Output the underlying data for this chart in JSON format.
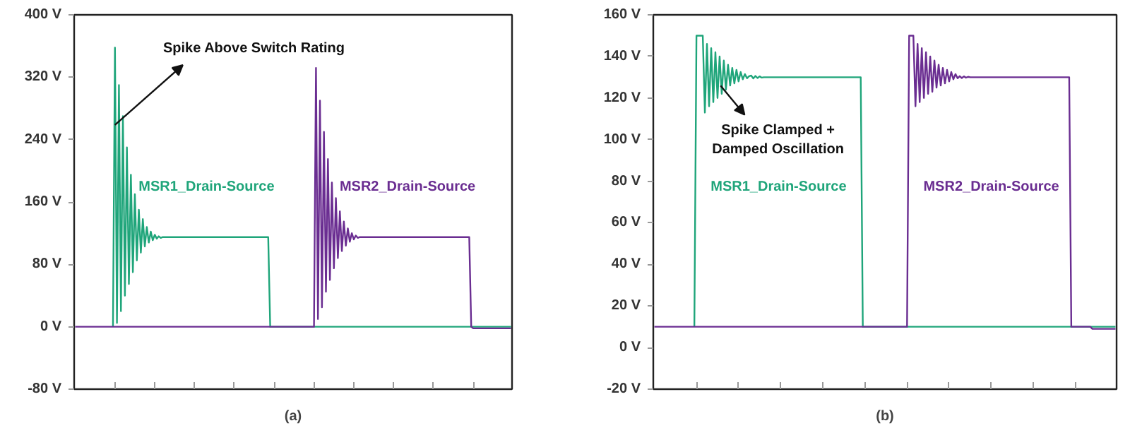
{
  "chart_data": [
    {
      "type": "line",
      "xlabel": "(a)",
      "categories": [
        null,
        null,
        null,
        null,
        null,
        null,
        null,
        null,
        null,
        null,
        null,
        null,
        null,
        null,
        null,
        null,
        null,
        null,
        null,
        null,
        null,
        null,
        null,
        null,
        null,
        null,
        null,
        null,
        null,
        null,
        null,
        null,
        null,
        null,
        null,
        null,
        null,
        null,
        null,
        null,
        null,
        null,
        null,
        null,
        null,
        null,
        null,
        null,
        null,
        null,
        null,
        null,
        null,
        null,
        null,
        null,
        null,
        null,
        null,
        null,
        null,
        null,
        null,
        null,
        null,
        null,
        null,
        null,
        null,
        null,
        null,
        null,
        null,
        null,
        null,
        null,
        null,
        null,
        null,
        null,
        null,
        null,
        null,
        null,
        null,
        null,
        null,
        null,
        null,
        null,
        null,
        null,
        null,
        null,
        null,
        null,
        null,
        null,
        null,
        null,
        null,
        null,
        null,
        null,
        null,
        null,
        null,
        null,
        null,
        null,
        null,
        null,
        null,
        null,
        null,
        null,
        null,
        null,
        null,
        null,
        null,
        null,
        null,
        null,
        null,
        null,
        null,
        null,
        null,
        null,
        null,
        null,
        null,
        null,
        null,
        null,
        null,
        null,
        null,
        null,
        null,
        null,
        null,
        null,
        null,
        null,
        null,
        null,
        null,
        null,
        null,
        null,
        null,
        null,
        null,
        null,
        null,
        null,
        null,
        null,
        null,
        null,
        null,
        null,
        null,
        null,
        null,
        null,
        null,
        null,
        null,
        null,
        null,
        null,
        null,
        null,
        null,
        null,
        null,
        null,
        null,
        null,
        null,
        null,
        null,
        null,
        null,
        null,
        null,
        null,
        null,
        null,
        null,
        null,
        null,
        null,
        null,
        null,
        null,
        null,
        null,
        null,
        null,
        null,
        null,
        null,
        null,
        null,
        null,
        null,
        null,
        null,
        null,
        null,
        null,
        null,
        null,
        null,
        null,
        null
      ],
      "ylim": [
        -80,
        400
      ],
      "yticks": [
        {
          "value": -80,
          "label": "-80 V"
        },
        {
          "value": 0,
          "label": "0 V"
        },
        {
          "value": 80,
          "label": "80 V"
        },
        {
          "value": 160,
          "label": "160 V"
        },
        {
          "value": 240,
          "label": "240 V"
        },
        {
          "value": 320,
          "label": "320 V"
        },
        {
          "value": 400,
          "label": "400 V"
        }
      ],
      "tick_labels": "y",
      "grid": false,
      "series": [
        {
          "name": "MSR1_Drain-Source",
          "color": "#1fa57a",
          "values": [
            null,
            null,
            null,
            null,
            null,
            null,
            null,
            null,
            null,
            null,
            null,
            null,
            null,
            null,
            null,
            null,
            null,
            null,
            null,
            0,
            358,
            5,
            310,
            20,
            270,
            40,
            230,
            55,
            195,
            70,
            170,
            85,
            150,
            95,
            138,
            103,
            128,
            108,
            122,
            111,
            118,
            113,
            116,
            114,
            115,
            115,
            115,
            115,
            115,
            115,
            115,
            115,
            115,
            115,
            115,
            115,
            115,
            115,
            115,
            115,
            115,
            115,
            115,
            115,
            115,
            115,
            115,
            115,
            115,
            115,
            115,
            115,
            115,
            115,
            115,
            115,
            115,
            115,
            115,
            115,
            115,
            115,
            115,
            115,
            115,
            115,
            115,
            115,
            115,
            115,
            115,
            115,
            115,
            115,
            115,
            115,
            115,
            115,
            0,
            0,
            0,
            0,
            0,
            0,
            0,
            0,
            0,
            0,
            0,
            0,
            0,
            0,
            0,
            0,
            0,
            0,
            0,
            0,
            0,
            0,
            0,
            0,
            0,
            0,
            0,
            0,
            0,
            0,
            0,
            0,
            0,
            0,
            0,
            0,
            0,
            0,
            0,
            0,
            0,
            0,
            0,
            0,
            0,
            0,
            0,
            0,
            0,
            0,
            0,
            0,
            0,
            0,
            0,
            0,
            0,
            0,
            0,
            0,
            0,
            0,
            0,
            0,
            0,
            0,
            0,
            0,
            0,
            0,
            0,
            0,
            0,
            0,
            0,
            0,
            0,
            0,
            0,
            0,
            0,
            0,
            0,
            0,
            0,
            0,
            0,
            0,
            0,
            0,
            0,
            0,
            0,
            0,
            0,
            0,
            0,
            0,
            0,
            0,
            0,
            0,
            0,
            0,
            0,
            0,
            0,
            0,
            0,
            0,
            0,
            0,
            0,
            0,
            0,
            0,
            0,
            0,
            0,
            0,
            0,
            0
          ]
        },
        {
          "name": "MSR2_Drain-Source",
          "color": "#6a2d91",
          "values": [
            0,
            0,
            0,
            0,
            0,
            0,
            0,
            0,
            0,
            0,
            0,
            0,
            0,
            0,
            0,
            0,
            0,
            0,
            0,
            0,
            0,
            0,
            0,
            0,
            0,
            0,
            0,
            0,
            0,
            0,
            0,
            0,
            0,
            0,
            0,
            0,
            0,
            0,
            0,
            0,
            0,
            0,
            0,
            0,
            0,
            0,
            0,
            0,
            0,
            0,
            0,
            0,
            0,
            0,
            0,
            0,
            0,
            0,
            0,
            0,
            0,
            0,
            0,
            0,
            0,
            0,
            0,
            0,
            0,
            0,
            0,
            0,
            0,
            0,
            0,
            0,
            0,
            0,
            0,
            0,
            0,
            0,
            0,
            0,
            0,
            0,
            0,
            0,
            0,
            0,
            0,
            0,
            0,
            0,
            0,
            0,
            0,
            0,
            0,
            0,
            0,
            0,
            0,
            0,
            0,
            0,
            0,
            0,
            0,
            0,
            0,
            0,
            0,
            0,
            0,
            0,
            0,
            0,
            0,
            0,
            0,
            332,
            10,
            290,
            25,
            250,
            45,
            215,
            60,
            185,
            75,
            165,
            88,
            148,
            97,
            135,
            104,
            126,
            109,
            120,
            112,
            117,
            114,
            115,
            115,
            115,
            115,
            115,
            115,
            115,
            115,
            115,
            115,
            115,
            115,
            115,
            115,
            115,
            115,
            115,
            115,
            115,
            115,
            115,
            115,
            115,
            115,
            115,
            115,
            115,
            115,
            115,
            115,
            115,
            115,
            115,
            115,
            115,
            115,
            115,
            115,
            115,
            115,
            115,
            115,
            115,
            115,
            115,
            115,
            115,
            115,
            115,
            115,
            115,
            115,
            115,
            115,
            115,
            115,
            0,
            -2,
            -2,
            -2,
            -2,
            -2,
            -2,
            -2,
            -2,
            -2,
            -2,
            -2,
            -2,
            -2,
            -2,
            -2,
            -2,
            -2,
            -2,
            -2,
            -2
          ]
        }
      ],
      "annotations": [
        "Spike Above Switch Rating"
      ]
    },
    {
      "type": "line",
      "xlabel": "(b)",
      "categories": [
        null,
        null,
        null,
        null,
        null,
        null,
        null,
        null,
        null,
        null,
        null,
        null,
        null,
        null,
        null,
        null,
        null,
        null,
        null,
        null,
        null,
        null,
        null,
        null,
        null,
        null,
        null,
        null,
        null,
        null,
        null,
        null,
        null,
        null,
        null,
        null,
        null,
        null,
        null,
        null,
        null,
        null,
        null,
        null,
        null,
        null,
        null,
        null,
        null,
        null,
        null,
        null,
        null,
        null,
        null,
        null,
        null,
        null,
        null,
        null,
        null,
        null,
        null,
        null,
        null,
        null,
        null,
        null,
        null,
        null,
        null,
        null,
        null,
        null,
        null,
        null,
        null,
        null,
        null,
        null,
        null,
        null,
        null,
        null,
        null,
        null,
        null,
        null,
        null,
        null,
        null,
        null,
        null,
        null,
        null,
        null,
        null,
        null,
        null,
        null,
        null,
        null,
        null,
        null,
        null,
        null,
        null,
        null,
        null,
        null,
        null,
        null,
        null,
        null,
        null,
        null,
        null,
        null,
        null,
        null,
        null,
        null,
        null,
        null,
        null,
        null,
        null,
        null,
        null,
        null,
        null,
        null,
        null,
        null,
        null,
        null,
        null,
        null,
        null,
        null,
        null,
        null,
        null,
        null,
        null,
        null,
        null,
        null,
        null,
        null,
        null,
        null,
        null,
        null,
        null,
        null,
        null,
        null,
        null,
        null,
        null,
        null,
        null,
        null,
        null,
        null,
        null,
        null,
        null,
        null,
        null,
        null,
        null,
        null,
        null,
        null,
        null,
        null,
        null,
        null,
        null,
        null,
        null,
        null,
        null,
        null,
        null,
        null,
        null,
        null,
        null,
        null,
        null,
        null,
        null,
        null,
        null,
        null,
        null,
        null,
        null,
        null,
        null,
        null,
        null,
        null,
        null,
        null,
        null,
        null,
        null,
        null,
        null,
        null,
        null,
        null,
        null,
        null,
        null,
        null
      ],
      "ylim": [
        -20,
        160
      ],
      "yticks": [
        {
          "value": -20,
          "label": "-20 V"
        },
        {
          "value": 0,
          "label": "0 V"
        },
        {
          "value": 20,
          "label": "20 V"
        },
        {
          "value": 40,
          "label": "40 V"
        },
        {
          "value": 60,
          "label": "60 V"
        },
        {
          "value": 80,
          "label": "80 V"
        },
        {
          "value": 100,
          "label": "100 V"
        },
        {
          "value": 120,
          "label": "120 V"
        },
        {
          "value": 140,
          "label": "140 V"
        },
        {
          "value": 160,
          "label": "160 V"
        }
      ],
      "tick_labels": "y",
      "grid": false,
      "series": [
        {
          "name": "MSR1_Drain-Source",
          "color": "#1fa57a",
          "values": [
            null,
            null,
            null,
            null,
            null,
            null,
            null,
            null,
            null,
            null,
            null,
            null,
            null,
            null,
            null,
            null,
            null,
            null,
            null,
            10,
            150,
            150,
            150,
            150,
            113,
            146,
            116,
            144,
            118,
            142,
            120,
            140,
            122,
            138,
            124,
            136,
            126,
            134.5,
            127,
            133.5,
            128,
            132.5,
            129,
            131.5,
            129.5,
            130.5,
            130.8,
            129.4,
            130.6,
            129.6,
            130.4,
            129.8,
            130,
            130,
            130,
            130,
            130,
            130,
            130,
            130,
            130,
            130,
            130,
            130,
            130,
            130,
            130,
            130,
            130,
            130,
            130,
            130,
            130,
            130,
            130,
            130,
            130,
            130,
            130,
            130,
            130,
            130,
            130,
            130,
            130,
            130,
            130,
            130,
            130,
            130,
            130,
            130,
            130,
            130,
            130,
            130,
            130,
            130,
            130,
            10,
            10,
            10,
            10,
            10,
            10,
            10,
            10,
            10,
            10,
            10,
            10,
            10,
            10,
            10,
            10,
            10,
            10,
            10,
            10,
            10,
            10,
            10,
            10,
            10,
            10,
            10,
            10,
            10,
            10,
            10,
            10,
            10,
            10,
            10,
            10,
            10,
            10,
            10,
            10,
            10,
            10,
            10,
            10,
            10,
            10,
            10,
            10,
            10,
            10,
            10,
            10,
            10,
            10,
            10,
            10,
            10,
            10,
            10,
            10,
            10,
            10,
            10,
            10,
            10,
            10,
            10,
            10,
            10,
            10,
            10,
            10,
            10,
            10,
            10,
            10,
            10,
            10,
            10,
            10,
            10,
            10,
            10,
            10,
            10,
            10,
            10,
            10,
            10,
            10,
            10,
            10,
            10,
            10,
            10,
            10,
            10,
            10,
            10,
            10,
            10,
            10,
            10,
            10,
            10,
            10,
            10,
            10,
            10,
            10,
            10,
            10,
            10,
            10,
            10,
            10,
            10,
            10,
            10,
            10,
            10
          ]
        },
        {
          "name": "MSR2_Drain-Source",
          "color": "#6a2d91",
          "values": [
            10,
            10,
            10,
            10,
            10,
            10,
            10,
            10,
            10,
            10,
            10,
            10,
            10,
            10,
            10,
            10,
            10,
            10,
            10,
            10,
            10,
            10,
            10,
            10,
            10,
            10,
            10,
            10,
            10,
            10,
            10,
            10,
            10,
            10,
            10,
            10,
            10,
            10,
            10,
            10,
            10,
            10,
            10,
            10,
            10,
            10,
            10,
            10,
            10,
            10,
            10,
            10,
            10,
            10,
            10,
            10,
            10,
            10,
            10,
            10,
            10,
            10,
            10,
            10,
            10,
            10,
            10,
            10,
            10,
            10,
            10,
            10,
            10,
            10,
            10,
            10,
            10,
            10,
            10,
            10,
            10,
            10,
            10,
            10,
            10,
            10,
            10,
            10,
            10,
            10,
            10,
            10,
            10,
            10,
            10,
            10,
            10,
            10,
            10,
            10,
            10,
            10,
            10,
            10,
            10,
            10,
            10,
            10,
            10,
            10,
            10,
            10,
            10,
            10,
            10,
            10,
            10,
            10,
            10,
            10,
            10,
            150,
            150,
            150,
            116,
            146,
            118,
            144,
            120,
            142,
            122,
            140,
            123,
            138,
            125,
            136,
            126,
            134.5,
            127,
            133.5,
            128,
            132.5,
            129,
            131.5,
            129.5,
            130.5,
            129.6,
            130.4,
            129.8,
            130.2,
            130,
            130,
            130,
            130,
            130,
            130,
            130,
            130,
            130,
            130,
            130,
            130,
            130,
            130,
            130,
            130,
            130,
            130,
            130,
            130,
            130,
            130,
            130,
            130,
            130,
            130,
            130,
            130,
            130,
            130,
            130,
            130,
            130,
            130,
            130,
            130,
            130,
            130,
            130,
            130,
            130,
            130,
            130,
            130,
            130,
            130,
            130,
            130,
            10,
            10,
            10,
            10,
            10,
            10,
            10,
            10,
            10,
            10,
            9,
            9,
            9,
            9,
            9,
            9,
            9,
            9,
            9,
            9,
            9,
            9
          ]
        }
      ],
      "annotations": [
        "Spike Clamped + Damped Oscillation"
      ]
    }
  ]
}
